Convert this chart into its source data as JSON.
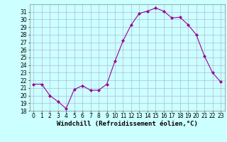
{
  "x": [
    0,
    1,
    2,
    3,
    4,
    5,
    6,
    7,
    8,
    9,
    10,
    11,
    12,
    13,
    14,
    15,
    16,
    17,
    18,
    19,
    20,
    21,
    22,
    23
  ],
  "y": [
    21.5,
    21.5,
    20.0,
    19.2,
    18.3,
    20.8,
    21.3,
    20.7,
    20.7,
    21.5,
    24.5,
    27.2,
    29.3,
    30.8,
    31.1,
    31.5,
    31.1,
    30.2,
    30.3,
    29.3,
    28.0,
    25.2,
    23.0,
    21.8
  ],
  "line_color": "#990099",
  "marker": "D",
  "markersize": 2.0,
  "linewidth": 0.8,
  "bg_color": "#ccffff",
  "grid_color": "#aaaacc",
  "xlabel": "Windchill (Refroidissement éolien,°C)",
  "xlabel_fontsize": 6.5,
  "tick_fontsize": 5.5,
  "ylim": [
    18,
    32
  ],
  "yticks": [
    18,
    19,
    20,
    21,
    22,
    23,
    24,
    25,
    26,
    27,
    28,
    29,
    30,
    31
  ],
  "xlim": [
    -0.5,
    23.5
  ],
  "xticks": [
    0,
    1,
    2,
    3,
    4,
    5,
    6,
    7,
    8,
    9,
    10,
    11,
    12,
    13,
    14,
    15,
    16,
    17,
    18,
    19,
    20,
    21,
    22,
    23
  ]
}
